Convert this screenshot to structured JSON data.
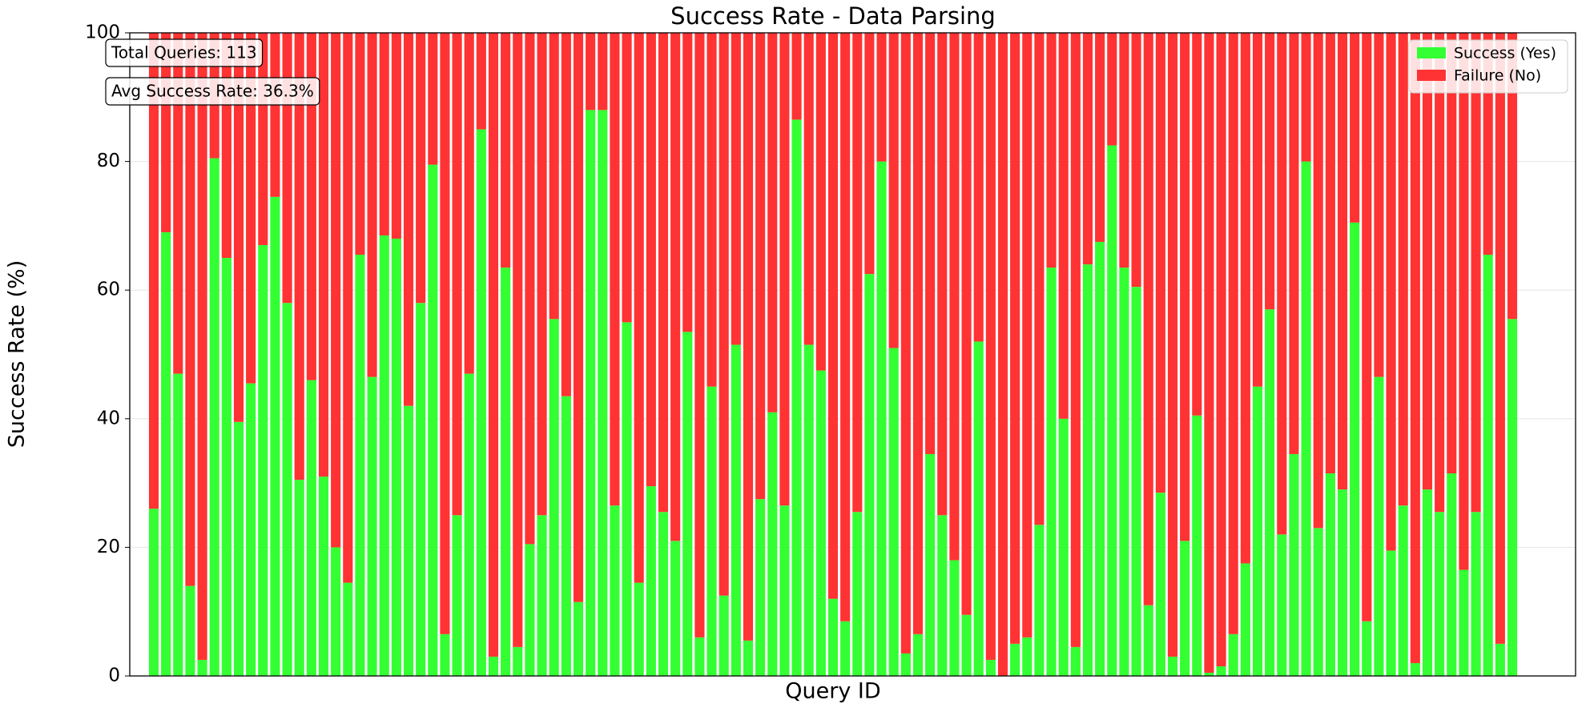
{
  "chart_data": {
    "type": "stacked_bar",
    "title": "Success Rate - Data Parsing",
    "x_label": "Query ID",
    "y_label": "Success Rate (%)",
    "ylim": [
      0,
      100
    ],
    "yticks": [
      0,
      20,
      40,
      60,
      80,
      100
    ],
    "grid": true,
    "legend": "upper right",
    "annotations": [
      "Total Queries: 113",
      "Avg Success Rate: 36.3%"
    ],
    "series": [
      {
        "name": "Success (Yes)",
        "color": "#33ff33",
        "values": [
          26,
          69,
          47,
          14,
          2.5,
          80.5,
          65,
          39.5,
          45.5,
          67,
          74.5,
          58,
          30.5,
          46,
          31,
          20,
          14.5,
          65.5,
          46.5,
          68.5,
          68,
          42,
          58,
          79.5,
          6.5,
          25,
          47,
          85,
          3,
          63.5,
          4.5,
          20.5,
          25,
          55.5,
          43.5,
          11.5,
          88,
          88,
          26.5,
          55,
          14.5,
          29.5,
          25.5,
          21,
          53.5,
          6,
          45,
          12.5,
          51.5,
          5.5,
          27.5,
          41,
          26.5,
          86.5,
          51.5,
          47.5,
          12,
          8.5,
          25.5,
          62.5,
          80,
          51,
          3.5,
          6.5,
          34.5,
          25,
          18,
          9.5,
          52,
          2.5,
          0,
          5,
          6,
          23.5,
          63.5,
          40,
          4.5,
          64,
          67.5,
          82.5,
          63.5,
          60.5,
          11,
          28.5,
          3,
          21,
          40.5,
          0.5,
          1.5,
          6.5,
          17.5,
          45,
          57,
          22,
          34.5,
          80,
          23,
          31.5,
          29,
          70.5,
          8.5,
          46.5,
          19.5,
          26.5,
          2,
          29,
          25.5,
          31.5,
          16.5,
          25.5,
          65.5,
          5,
          55.5
        ]
      },
      {
        "name": "Failure (No)",
        "color": "#ff3333",
        "values": [
          74,
          31,
          53,
          86,
          97.5,
          19.5,
          35,
          60.5,
          54.5,
          33,
          25.5,
          42,
          69.5,
          54,
          69,
          80,
          85.5,
          34.5,
          53.5,
          31.5,
          32,
          58,
          42,
          20.5,
          93.5,
          75,
          53,
          15,
          97,
          36.5,
          95.5,
          79.5,
          75,
          44.5,
          56.5,
          88.5,
          12,
          12,
          73.5,
          45,
          85.5,
          70.5,
          74.5,
          79,
          46.5,
          94,
          55,
          87.5,
          48.5,
          94.5,
          72.5,
          59,
          73.5,
          13.5,
          48.5,
          52.5,
          88,
          91.5,
          74.5,
          37.5,
          20,
          49,
          96.5,
          93.5,
          65.5,
          75,
          82,
          90.5,
          48,
          97.5,
          100,
          95,
          94,
          76.5,
          36.5,
          60,
          95.5,
          36,
          32.5,
          17.5,
          36.5,
          39.5,
          89,
          71.5,
          97,
          79,
          59.5,
          99.5,
          98.5,
          93.5,
          82.5,
          55,
          43,
          78,
          65.5,
          20,
          77,
          68.5,
          71,
          29.5,
          91.5,
          53.5,
          80.5,
          73.5,
          98,
          71,
          74.5,
          68.5,
          83.5,
          74.5,
          34.5,
          95,
          44.5
        ]
      }
    ]
  }
}
